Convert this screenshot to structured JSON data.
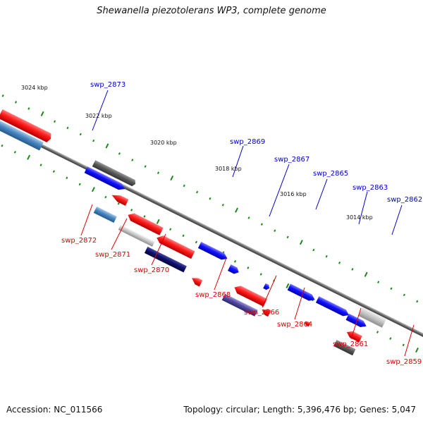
{
  "title": "Shewanella piezotolerans WP3, complete genome",
  "footer": {
    "accession": "Accession: NC_011566",
    "summary": "Topology: circular; Length: 5,396,476 bp; Genes: 5,047"
  },
  "colors": {
    "backbone": "#777777",
    "tick": "#1a8a1a",
    "label_forward": "#0000cc",
    "label_reverse": "#dd0000",
    "kbp_label": "#111111"
  },
  "ruler": [
    {
      "label": "3024 kbp",
      "position_kbp": 3024
    },
    {
      "label": "3022 kbp",
      "position_kbp": 3022
    },
    {
      "label": "3020 kbp",
      "position_kbp": 3020
    },
    {
      "label": "3018 kbp",
      "position_kbp": 3018
    },
    {
      "label": "3016 kbp",
      "position_kbp": 3016
    },
    {
      "label": "3014 kbp",
      "position_kbp": 3014
    }
  ],
  "gene_labels": [
    {
      "name": "swp_2873",
      "strand": "forward"
    },
    {
      "name": "swp_2869",
      "strand": "forward"
    },
    {
      "name": "swp_2867",
      "strand": "forward"
    },
    {
      "name": "swp_2865",
      "strand": "forward"
    },
    {
      "name": "swp_2863",
      "strand": "forward"
    },
    {
      "name": "swp_2862",
      "strand": "forward"
    },
    {
      "name": "swp_2872",
      "strand": "reverse"
    },
    {
      "name": "swp_2871",
      "strand": "reverse"
    },
    {
      "name": "swp_2870",
      "strand": "reverse"
    },
    {
      "name": "swp_2868",
      "strand": "reverse"
    },
    {
      "name": "swp_2866",
      "strand": "reverse"
    },
    {
      "name": "swp_2864",
      "strand": "reverse"
    },
    {
      "name": "swp_2861",
      "strand": "reverse"
    },
    {
      "name": "swp_2859",
      "strand": "reverse"
    }
  ]
}
